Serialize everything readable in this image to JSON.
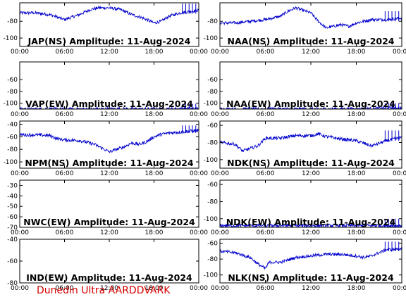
{
  "credit": "Dunedin Ultra AARDDVARK",
  "colors": {
    "line": "#0000cc",
    "axes": "#000000",
    "credit": "#d40000"
  },
  "chart_data": [
    {
      "type": "line",
      "title": "JAP(NS) Amplitude: 11-Aug-2024",
      "xlim": [
        0,
        24
      ],
      "ylim": [
        -110,
        -58
      ],
      "yticks": [
        -80,
        -100
      ],
      "xticks": [
        "00:00",
        "06:00",
        "12:00",
        "18:00",
        "00:00"
      ],
      "series": [
        {
          "x": [
            0,
            2,
            4,
            6,
            8,
            9.5,
            10.5,
            12,
            13.5,
            15,
            16.5,
            18,
            19,
            20,
            21.5,
            23,
            24
          ],
          "y": [
            -70,
            -70,
            -72,
            -78,
            -72,
            -66,
            -64,
            -64,
            -66,
            -72,
            -76,
            -82,
            -80,
            -74,
            -70,
            -68,
            -67
          ]
        }
      ]
    },
    {
      "type": "line",
      "title": "NAA(NS) Amplitude: 11-Aug-2024",
      "xlim": [
        0,
        24
      ],
      "ylim": [
        -110,
        -58
      ],
      "yticks": [
        -80,
        -100
      ],
      "xticks": [
        "00:00",
        "06:00",
        "12:00",
        "18:00",
        "00:00"
      ],
      "series": [
        {
          "x": [
            0,
            2,
            4,
            6,
            8,
            9,
            10,
            12,
            13,
            14,
            15,
            16,
            17,
            18,
            19,
            20,
            22,
            24
          ],
          "y": [
            -82,
            -82,
            -80,
            -78,
            -74,
            -68,
            -64,
            -70,
            -80,
            -88,
            -86,
            -84,
            -86,
            -82,
            -80,
            -78,
            -78,
            -76
          ]
        }
      ]
    },
    {
      "type": "line",
      "title": "VAP(EW) Amplitude: 11-Aug-2024",
      "xlim": [
        0,
        24
      ],
      "ylim": [
        -110,
        -30
      ],
      "yticks": [
        -60,
        -80,
        -100
      ],
      "xticks": [
        "00:00",
        "06:00",
        "12:00",
        "18:00",
        "00:00"
      ],
      "series": [
        {
          "x": [
            0,
            6,
            12,
            18,
            24
          ],
          "y": [
            -110,
            -110,
            -110,
            -110,
            -109
          ]
        }
      ]
    },
    {
      "type": "line",
      "title": "NAA(EW) Amplitude: 11-Aug-2024",
      "xlim": [
        0,
        24
      ],
      "ylim": [
        -110,
        -30
      ],
      "yticks": [
        -60,
        -80,
        -100
      ],
      "xticks": [
        "00:00",
        "06:00",
        "12:00",
        "18:00",
        "00:00"
      ],
      "series": [
        {
          "x": [
            0,
            6,
            12,
            18,
            24
          ],
          "y": [
            -110,
            -110,
            -110,
            -110,
            -108
          ]
        }
      ]
    },
    {
      "type": "line",
      "title": "NPM(NS) Amplitude: 11-Aug-2024",
      "xlim": [
        0,
        24
      ],
      "ylim": [
        -110,
        -35
      ],
      "yticks": [
        -40,
        -60,
        -80,
        -100
      ],
      "xticks": [
        "00:00",
        "06:00",
        "12:00",
        "18:00",
        "00:00"
      ],
      "series": [
        {
          "x": [
            0,
            2,
            4,
            5,
            6,
            8,
            10,
            11,
            12,
            13,
            14,
            15,
            16,
            17,
            18,
            19,
            20,
            22,
            24
          ],
          "y": [
            -57,
            -57,
            -58,
            -63,
            -65,
            -66,
            -72,
            -78,
            -84,
            -80,
            -76,
            -70,
            -72,
            -68,
            -60,
            -56,
            -54,
            -52,
            -50
          ]
        }
      ]
    },
    {
      "type": "line",
      "title": "NDK(NS) Amplitude: 11-Aug-2024",
      "xlim": [
        0,
        24
      ],
      "ylim": [
        -110,
        -55
      ],
      "yticks": [
        -60,
        -80,
        -100
      ],
      "xticks": [
        "00:00",
        "06:00",
        "12:00",
        "18:00",
        "00:00"
      ],
      "series": [
        {
          "x": [
            0,
            2,
            3,
            5,
            6,
            8,
            10,
            12,
            13,
            14,
            16,
            18,
            20,
            22,
            24
          ],
          "y": [
            -80,
            -82,
            -90,
            -84,
            -75,
            -75,
            -72,
            -72,
            -70,
            -73,
            -76,
            -78,
            -84,
            -78,
            -74
          ]
        }
      ]
    },
    {
      "type": "line",
      "title": "NWC(EW) Amplitude: 11-Aug-2024",
      "xlim": [
        0,
        24
      ],
      "ylim": [
        -70,
        -25
      ],
      "yticks": [
        -30,
        -40,
        -50,
        -60,
        -70
      ],
      "xticks": [
        "00:00",
        "06:00",
        "12:00",
        "18:00",
        "00:00"
      ],
      "series": []
    },
    {
      "type": "line",
      "title": "NDK(EW) Amplitude: 11-Aug-2024",
      "xlim": [
        0,
        24
      ],
      "ylim": [
        -110,
        -55
      ],
      "yticks": [
        -60,
        -80,
        -100
      ],
      "xticks": [
        "00:00",
        "06:00",
        "12:00",
        "18:00",
        "00:00"
      ],
      "series": [
        {
          "x": [
            0,
            6,
            12,
            18,
            24
          ],
          "y": [
            -108,
            -108,
            -108,
            -108,
            -108
          ]
        }
      ]
    },
    {
      "type": "line",
      "title": "IND(EW) Amplitude: 11-Aug-2024",
      "xlim": [
        0,
        24
      ],
      "ylim": [
        -80,
        -40
      ],
      "yticks": [
        -40,
        -60,
        -80
      ],
      "xticks": [
        "00:00",
        "06:00",
        "12:00",
        "18:00",
        "00:00"
      ],
      "series": []
    },
    {
      "type": "line",
      "title": "NLK(NS) Amplitude: 11-Aug-2024",
      "xlim": [
        0,
        24
      ],
      "ylim": [
        -110,
        -55
      ],
      "yticks": [
        -60,
        -80,
        -100
      ],
      "xticks": [
        "00:00",
        "06:00",
        "12:00",
        "18:00",
        "00:00"
      ],
      "series": [
        {
          "x": [
            0,
            2,
            4,
            5,
            6,
            6.5,
            8,
            10,
            12,
            14,
            16,
            18,
            19,
            20,
            22,
            23,
            24
          ],
          "y": [
            -70,
            -72,
            -78,
            -86,
            -92,
            -84,
            -84,
            -78,
            -76,
            -74,
            -74,
            -76,
            -78,
            -76,
            -68,
            -68,
            -66
          ]
        }
      ]
    }
  ]
}
